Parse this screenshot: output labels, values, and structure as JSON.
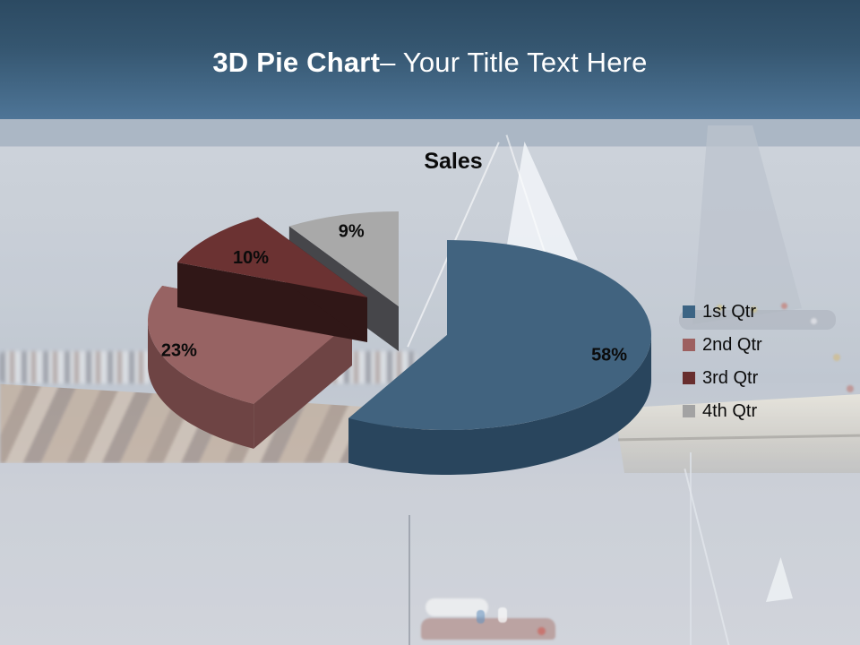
{
  "slide": {
    "title_bold": "3D Pie Chart",
    "title_rest": "– Your Title Text Here"
  },
  "chart_data": {
    "type": "pie",
    "style": "3d-exploded-pie",
    "title": "Sales",
    "labels": [
      "1st Qtr",
      "2nd Qtr",
      "3rd Qtr",
      "4th Qtr"
    ],
    "values": [
      58,
      23,
      10,
      9
    ],
    "data_labels": [
      "58%",
      "23%",
      "10%",
      "9%"
    ],
    "slice_colors_top": [
      "#41637f",
      "#976363",
      "#6b3232",
      "#a9a9a9"
    ],
    "slice_colors_side": [
      "#29455d",
      "#6e4444",
      "#301717",
      "#46464a"
    ],
    "legend_swatch_colors": [
      "#3c6484",
      "#9d6060",
      "#682e2e",
      "#a3a3a3"
    ],
    "legend_position": "right",
    "label_color": "#000000"
  },
  "theme": {
    "header_gradient_top": "#2c4a62",
    "header_gradient_bottom": "#4e7597",
    "header_title_color": "#ffffff"
  }
}
